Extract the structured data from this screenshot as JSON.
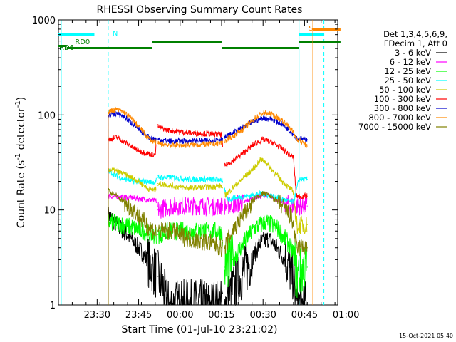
{
  "chart_data": {
    "type": "line",
    "title": "RHESSI Observing Summary Count Rates",
    "xlabel": "Start Time (01-Jul-10 23:21:02)",
    "ylabel": "Count Rate (s",
    "ylabel_sup": "-1",
    "ylabel_tail": " detector",
    "ylabel_tail_sup": "-1",
    "ylabel_close": ")",
    "yscale": "log",
    "ylim": [
      1,
      1000
    ],
    "yticks": [
      {
        "v": 1,
        "label": "1"
      },
      {
        "v": 10,
        "label": "10"
      },
      {
        "v": 100,
        "label": "100"
      },
      {
        "v": 1000,
        "label": "1000"
      }
    ],
    "xlim_min": [
      -5,
      96
    ],
    "xticks": [
      {
        "m": 9,
        "label": "23:30"
      },
      {
        "m": 24,
        "label": "23:45"
      },
      {
        "m": 39,
        "label": "00:00"
      },
      {
        "m": 54,
        "label": "00:15"
      },
      {
        "m": 69,
        "label": "00:30"
      },
      {
        "m": 84,
        "label": "00:45"
      },
      {
        "m": 99,
        "label": "01:00"
      }
    ],
    "legend_title": [
      "Det 1,3,4,5,6,9,",
      "FDecim 1, Att 0"
    ],
    "series": [
      {
        "name": "3 - 6 keV",
        "color": "#000000",
        "points": [
          [
            13,
            9
          ],
          [
            16,
            7
          ],
          [
            20,
            5.5
          ],
          [
            24,
            4
          ],
          [
            27,
            3
          ],
          [
            31,
            2
          ],
          [
            33,
            1.5
          ],
          [
            34,
            1
          ],
          [
            40,
            1
          ],
          [
            45,
            1
          ],
          [
            50,
            1
          ],
          [
            54,
            1
          ],
          [
            55,
            1
          ],
          [
            60,
            1.8
          ],
          [
            65,
            3
          ],
          [
            68,
            4.5
          ],
          [
            71,
            5
          ],
          [
            74,
            4
          ],
          [
            77,
            3
          ],
          [
            80,
            2
          ],
          [
            81,
            1
          ],
          [
            85,
            1
          ]
        ]
      },
      {
        "name": "6 - 12 keV",
        "color": "#ff00ff",
        "points": [
          [
            13,
            14
          ],
          [
            20,
            13.5
          ],
          [
            26,
            13
          ],
          [
            30,
            12.5
          ],
          [
            31,
            10
          ],
          [
            36,
            11
          ],
          [
            42,
            11
          ],
          [
            50,
            11
          ],
          [
            54,
            11
          ],
          [
            56,
            11
          ],
          [
            62,
            12
          ],
          [
            66,
            13.5
          ],
          [
            70,
            14.5
          ],
          [
            74,
            13
          ],
          [
            78,
            11.5
          ],
          [
            80,
            11
          ],
          [
            82,
            11
          ],
          [
            85,
            11
          ]
        ]
      },
      {
        "name": "12 - 25 keV",
        "color": "#00ff00",
        "points": [
          [
            13,
            7.5
          ],
          [
            18,
            7
          ],
          [
            22,
            6.5
          ],
          [
            26,
            6
          ],
          [
            28,
            5.5
          ],
          [
            31,
            5.5
          ],
          [
            36,
            6
          ],
          [
            42,
            6
          ],
          [
            50,
            6
          ],
          [
            54,
            6
          ],
          [
            55,
            2.5
          ],
          [
            58,
            3
          ],
          [
            62,
            4.5
          ],
          [
            66,
            6.5
          ],
          [
            70,
            7.5
          ],
          [
            74,
            6.5
          ],
          [
            78,
            4.5
          ],
          [
            80,
            3.5
          ],
          [
            81,
            2
          ],
          [
            85,
            2.5
          ]
        ]
      },
      {
        "name": "25 - 50 keV",
        "color": "#00ffff",
        "points": [
          [
            13,
            26
          ],
          [
            17,
            22
          ],
          [
            22,
            20
          ],
          [
            26,
            20
          ],
          [
            30,
            19.5
          ],
          [
            31,
            22
          ],
          [
            36,
            22
          ],
          [
            42,
            21
          ],
          [
            50,
            21
          ],
          [
            54,
            21
          ],
          [
            56,
            13
          ],
          [
            60,
            13.5
          ],
          [
            64,
            14
          ],
          [
            68,
            15
          ],
          [
            72,
            14
          ],
          [
            76,
            13
          ],
          [
            80,
            12
          ],
          [
            82,
            21
          ],
          [
            85,
            21
          ]
        ]
      },
      {
        "name": "50 - 100 keV",
        "color": "#cccc00",
        "points": [
          [
            13,
            27
          ],
          [
            17,
            25
          ],
          [
            20,
            23
          ],
          [
            24,
            20
          ],
          [
            27,
            17
          ],
          [
            30,
            16
          ],
          [
            31,
            19
          ],
          [
            36,
            18
          ],
          [
            42,
            17
          ],
          [
            50,
            17.5
          ],
          [
            54,
            18
          ],
          [
            55,
            14
          ],
          [
            58,
            17
          ],
          [
            62,
            22
          ],
          [
            66,
            28
          ],
          [
            68,
            34
          ],
          [
            70,
            32
          ],
          [
            73,
            25
          ],
          [
            76,
            20
          ],
          [
            80,
            15.5
          ],
          [
            81,
            7
          ],
          [
            85,
            7
          ]
        ]
      },
      {
        "name": "100 - 300 keV",
        "color": "#ff0000",
        "points": [
          [
            13,
            55
          ],
          [
            16,
            58
          ],
          [
            19,
            52
          ],
          [
            22,
            45
          ],
          [
            26,
            40
          ],
          [
            30,
            38
          ],
          [
            31,
            75
          ],
          [
            34,
            70
          ],
          [
            38,
            67
          ],
          [
            42,
            65
          ],
          [
            46,
            64
          ],
          [
            50,
            63
          ],
          [
            54,
            62
          ],
          [
            55,
            29
          ],
          [
            58,
            33
          ],
          [
            62,
            40
          ],
          [
            66,
            50
          ],
          [
            69,
            55
          ],
          [
            72,
            52
          ],
          [
            76,
            44
          ],
          [
            79,
            37
          ],
          [
            80,
            36
          ],
          [
            81,
            14
          ],
          [
            85,
            14
          ]
        ]
      },
      {
        "name": "300 - 800 keV",
        "color": "#0000cc",
        "points": [
          [
            13,
            100
          ],
          [
            16,
            104
          ],
          [
            19,
            95
          ],
          [
            22,
            80
          ],
          [
            25,
            66
          ],
          [
            28,
            58
          ],
          [
            31,
            55
          ],
          [
            36,
            53
          ],
          [
            42,
            53
          ],
          [
            50,
            54
          ],
          [
            54,
            56
          ],
          [
            58,
            64
          ],
          [
            62,
            75
          ],
          [
            66,
            87
          ],
          [
            69,
            93
          ],
          [
            72,
            90
          ],
          [
            76,
            80
          ],
          [
            79,
            67
          ],
          [
            80,
            62
          ],
          [
            81,
            57
          ],
          [
            85,
            55
          ]
        ]
      },
      {
        "name": "800 - 7000 keV",
        "color": "#ff8800",
        "points": [
          [
            13,
            107
          ],
          [
            16,
            114
          ],
          [
            19,
            105
          ],
          [
            22,
            88
          ],
          [
            25,
            70
          ],
          [
            28,
            55
          ],
          [
            31,
            50
          ],
          [
            36,
            48
          ],
          [
            42,
            48
          ],
          [
            50,
            49
          ],
          [
            54,
            51
          ],
          [
            58,
            60
          ],
          [
            62,
            72
          ],
          [
            66,
            92
          ],
          [
            69,
            105
          ],
          [
            72,
            102
          ],
          [
            76,
            88
          ],
          [
            79,
            72
          ],
          [
            80,
            65
          ],
          [
            81,
            57
          ],
          [
            85,
            47
          ]
        ]
      },
      {
        "name": "7000 - 15000 keV",
        "color": "#808000",
        "points": [
          [
            13,
            16
          ],
          [
            16,
            14
          ],
          [
            19,
            12
          ],
          [
            22,
            10
          ],
          [
            25,
            8
          ],
          [
            28,
            6.5
          ],
          [
            30,
            6
          ],
          [
            31,
            6
          ],
          [
            36,
            6
          ],
          [
            42,
            5
          ],
          [
            50,
            4.5
          ],
          [
            54,
            4
          ],
          [
            55,
            4
          ],
          [
            58,
            6
          ],
          [
            62,
            9
          ],
          [
            66,
            13
          ],
          [
            69,
            15
          ],
          [
            72,
            14
          ],
          [
            76,
            11
          ],
          [
            79,
            8.5
          ],
          [
            80,
            7
          ],
          [
            81,
            4
          ],
          [
            85,
            4
          ]
        ]
      }
    ],
    "annotations": {
      "N": {
        "label": "N",
        "color": "#00ffff"
      },
      "RD0": {
        "label": "RD0",
        "color": "#008000"
      },
      "RD6": {
        "label": "RD6",
        "color": "#008000"
      },
      "S": {
        "label": "S",
        "color": "#ff8800"
      }
    },
    "night_bars": [
      [
        -5,
        8
      ],
      [
        82,
        91
      ]
    ],
    "night_markers_dashed": [
      13,
      91
    ],
    "night_markers_solid": [
      -4,
      82
    ],
    "saa_bars": [
      [
        87,
        97
      ]
    ],
    "saa_markers": [
      87
    ],
    "decim_bars": [
      [
        -5,
        -2
      ],
      [
        -2,
        29
      ],
      [
        29,
        54
      ],
      [
        54,
        82
      ],
      [
        82,
        97
      ]
    ],
    "gaps": [
      [
        30.5,
        31
      ],
      [
        54.5,
        55
      ]
    ],
    "timestamp": "15-Oct-2021 05:40"
  }
}
